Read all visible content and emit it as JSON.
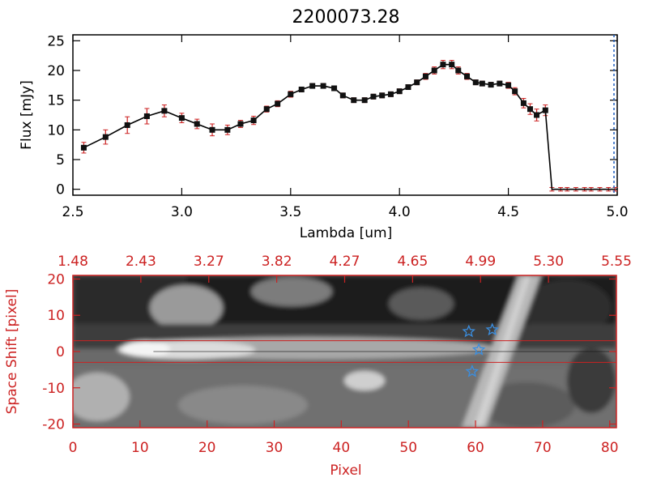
{
  "title": "2200073.28",
  "colors": {
    "axis_top": "#000000",
    "axis_bottom": "#cc2222",
    "errorbar": "#cc2222",
    "marker": "#111111",
    "line": "#000000",
    "dashed": "#1f5fbf",
    "star": "#3a8ee0",
    "slit": "#cc2222"
  },
  "chart_data": [
    {
      "type": "line",
      "title": "2200073.28",
      "xlabel": "Lambda [um]",
      "ylabel": "Flux [mJy]",
      "xlim": [
        2.5,
        5.0
      ],
      "ylim": [
        -1,
        26
      ],
      "xticks": [
        2.5,
        3.0,
        3.5,
        4.0,
        4.5,
        5.0
      ],
      "xtick_labels": [
        "2.5",
        "3.0",
        "3.5",
        "4.0",
        "4.5",
        "5.0"
      ],
      "yticks": [
        0,
        5,
        10,
        15,
        20,
        25
      ],
      "ytick_labels": [
        "0",
        "5",
        "10",
        "15",
        "20",
        "25"
      ],
      "series": [
        {
          "name": "spectrum",
          "x": [
            2.55,
            2.65,
            2.75,
            2.84,
            2.92,
            3.0,
            3.07,
            3.14,
            3.21,
            3.27,
            3.33,
            3.39,
            3.44,
            3.5,
            3.55,
            3.6,
            3.65,
            3.7,
            3.74,
            3.79,
            3.84,
            3.88,
            3.92,
            3.96,
            4.0,
            4.04,
            4.08,
            4.12,
            4.16,
            4.2,
            4.24,
            4.27,
            4.31,
            4.35,
            4.38,
            4.42,
            4.46,
            4.5,
            4.53,
            4.57,
            4.6,
            4.63,
            4.67,
            4.7,
            4.74,
            4.77,
            4.81,
            4.85,
            4.88,
            4.92,
            4.96,
            4.99
          ],
          "y": [
            7.0,
            8.8,
            10.8,
            12.3,
            13.2,
            12.0,
            11.0,
            10.0,
            10.0,
            11.0,
            11.6,
            13.5,
            14.4,
            16.0,
            16.8,
            17.4,
            17.4,
            17.0,
            15.8,
            15.0,
            15.0,
            15.6,
            15.8,
            16.0,
            16.5,
            17.2,
            18.0,
            19.0,
            20.0,
            21.0,
            21.0,
            20.0,
            19.0,
            18.0,
            17.8,
            17.6,
            17.8,
            17.5,
            16.5,
            14.5,
            13.5,
            12.5,
            13.3,
            0.0,
            0.0,
            0.0,
            0.0,
            0.0,
            0.0,
            0.0,
            0.0,
            0.0
          ],
          "yerr": [
            0.9,
            1.2,
            1.4,
            1.3,
            1.0,
            0.8,
            0.8,
            1.0,
            0.8,
            0.6,
            0.7,
            0.5,
            0.5,
            0.5,
            0.4,
            0.4,
            0.4,
            0.4,
            0.4,
            0.4,
            0.4,
            0.4,
            0.4,
            0.4,
            0.4,
            0.4,
            0.4,
            0.5,
            0.6,
            0.7,
            0.7,
            0.6,
            0.5,
            0.4,
            0.4,
            0.4,
            0.4,
            0.5,
            0.6,
            0.8,
            0.9,
            1.0,
            0.9,
            0.3,
            0.3,
            0.3,
            0.3,
            0.3,
            0.3,
            0.3,
            0.3,
            0.3
          ]
        }
      ],
      "annotations": [
        "vertical dashed line at 5.0"
      ]
    },
    {
      "type": "heatmap",
      "xlabel": "Pixel",
      "ylabel": "Space Shift [pixel]",
      "xlim": [
        0,
        81
      ],
      "ylim": [
        -21,
        21
      ],
      "xticks": [
        0,
        10,
        20,
        30,
        40,
        50,
        60,
        70,
        80
      ],
      "xtick_labels": [
        "0",
        "10",
        "20",
        "30",
        "40",
        "50",
        "60",
        "70",
        "80"
      ],
      "yticks": [
        -20,
        -10,
        0,
        10,
        20
      ],
      "ytick_labels": [
        "-20",
        "-10",
        "0",
        "10",
        "20"
      ],
      "top_tick_labels": [
        "1.48",
        "2.43",
        "3.27",
        "3.82",
        "4.27",
        "4.65",
        "4.99",
        "5.30",
        "5.55"
      ],
      "slit_lines": [
        3,
        -3
      ],
      "stars": [
        {
          "x": 59.0,
          "y": 5.5
        },
        {
          "x": 62.5,
          "y": 6.0
        },
        {
          "x": 60.5,
          "y": 0.5
        },
        {
          "x": 59.5,
          "y": -5.5
        }
      ]
    }
  ]
}
